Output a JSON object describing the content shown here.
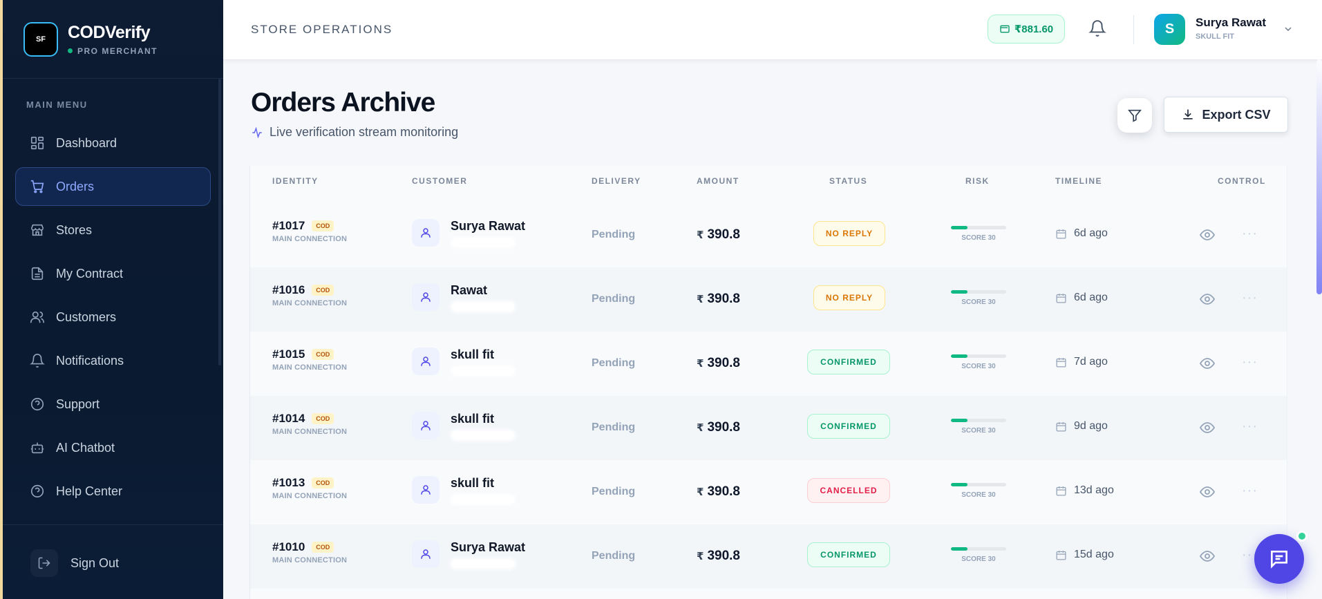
{
  "brand": {
    "name": "CODVerify",
    "tier": "PRO MERCHANT",
    "logo_text": "SF"
  },
  "sidebar": {
    "caption": "MAIN MENU",
    "items": [
      {
        "label": "Dashboard",
        "icon": "dashboard-icon"
      },
      {
        "label": "Orders",
        "icon": "cart-icon",
        "active": true
      },
      {
        "label": "Stores",
        "icon": "store-icon"
      },
      {
        "label": "My Contract",
        "icon": "document-icon"
      },
      {
        "label": "Customers",
        "icon": "users-icon"
      },
      {
        "label": "Notifications",
        "icon": "bell-icon"
      },
      {
        "label": "Support",
        "icon": "help-circle-icon"
      },
      {
        "label": "AI Chatbot",
        "icon": "bot-icon"
      },
      {
        "label": "Help Center",
        "icon": "help-circle-icon"
      }
    ],
    "sign_out": "Sign Out"
  },
  "header": {
    "section": "STORE OPERATIONS",
    "balance": "₹881.60",
    "user": {
      "initial": "S",
      "name": "Surya Rawat",
      "store": "SKULL FIT"
    }
  },
  "main": {
    "title": "Orders Archive",
    "subtitle": "Live verification stream monitoring",
    "export_label": "Export CSV"
  },
  "table": {
    "columns": [
      "IDENTITY",
      "CUSTOMER",
      "DELIVERY",
      "AMOUNT",
      "STATUS",
      "RISK",
      "TIMELINE",
      "CONTROL"
    ],
    "rows": [
      {
        "id": "#1017",
        "badge": "COD",
        "connection": "MAIN CONNECTION",
        "customer": "Surya Rawat",
        "delivery": "Pending",
        "currency": "₹",
        "amount": "390.8",
        "status": "NO REPLY",
        "status_kind": "noreply",
        "risk_label": "SCORE 30",
        "risk": 0.3,
        "timeline": "6d ago"
      },
      {
        "id": "#1016",
        "badge": "COD",
        "connection": "MAIN CONNECTION",
        "customer": "Rawat",
        "delivery": "Pending",
        "currency": "₹",
        "amount": "390.8",
        "status": "NO REPLY",
        "status_kind": "noreply",
        "risk_label": "SCORE 30",
        "risk": 0.3,
        "timeline": "6d ago"
      },
      {
        "id": "#1015",
        "badge": "COD",
        "connection": "MAIN CONNECTION",
        "customer": "skull fit",
        "delivery": "Pending",
        "currency": "₹",
        "amount": "390.8",
        "status": "CONFIRMED",
        "status_kind": "confirmed",
        "risk_label": "SCORE 30",
        "risk": 0.3,
        "timeline": "7d ago"
      },
      {
        "id": "#1014",
        "badge": "COD",
        "connection": "MAIN CONNECTION",
        "customer": "skull fit",
        "delivery": "Pending",
        "currency": "₹",
        "amount": "390.8",
        "status": "CONFIRMED",
        "status_kind": "confirmed",
        "risk_label": "SCORE 30",
        "risk": 0.3,
        "timeline": "9d ago"
      },
      {
        "id": "#1013",
        "badge": "COD",
        "connection": "MAIN CONNECTION",
        "customer": "skull fit",
        "delivery": "Pending",
        "currency": "₹",
        "amount": "390.8",
        "status": "CANCELLED",
        "status_kind": "cancelled",
        "risk_label": "SCORE 30",
        "risk": 0.3,
        "timeline": "13d ago"
      },
      {
        "id": "#1010",
        "badge": "COD",
        "connection": "MAIN CONNECTION",
        "customer": "Surya Rawat",
        "delivery": "Pending",
        "currency": "₹",
        "amount": "390.8",
        "status": "CONFIRMED",
        "status_kind": "confirmed",
        "risk_label": "SCORE 30",
        "risk": 0.3,
        "timeline": "15d ago"
      }
    ]
  },
  "colors": {
    "accent": "#4f46e5",
    "sidebar_bg": "#0d1b33",
    "success": "#059669",
    "warning": "#d97706",
    "danger": "#e11d48"
  }
}
